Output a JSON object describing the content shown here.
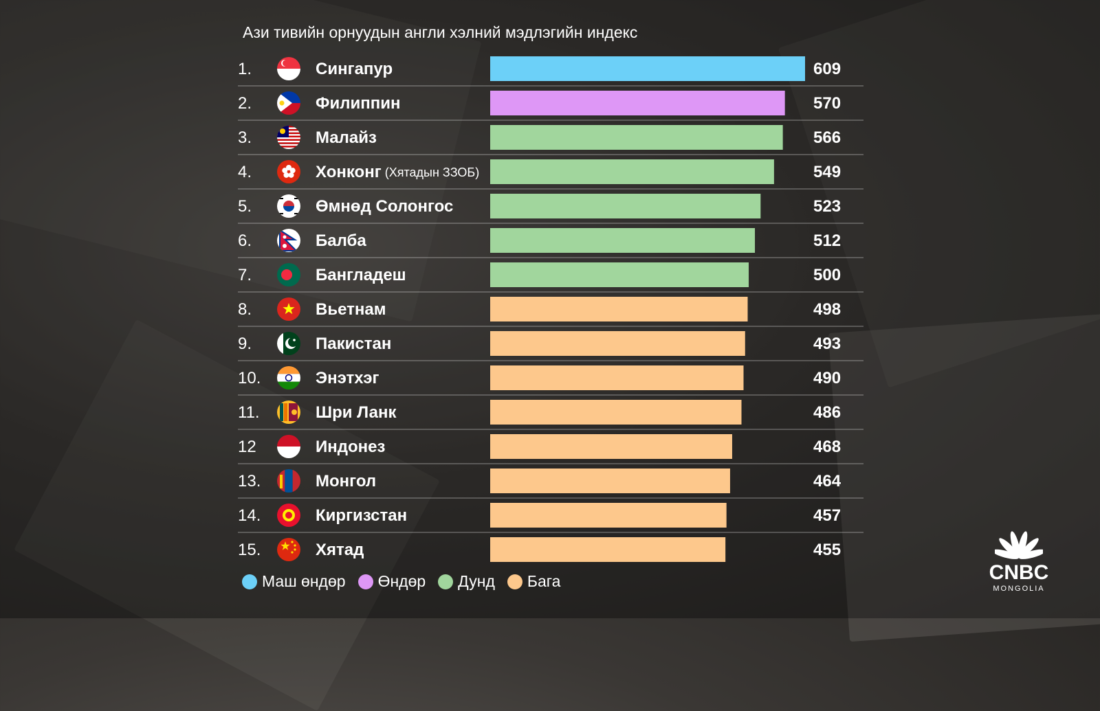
{
  "chart_data": {
    "type": "bar",
    "orientation": "horizontal",
    "title": "Ази тивийн орнуудын англи хэлний мэдлэгийн индекс",
    "value_range": [
      0,
      609
    ],
    "rows": [
      {
        "rank": "1.",
        "name": "Сингапур",
        "note": "",
        "value": 609,
        "level": "very_high",
        "flag": "singapore-flag-icon"
      },
      {
        "rank": "2.",
        "name": "Филиппин",
        "note": "",
        "value": 570,
        "level": "high",
        "flag": "philippines-flag-icon"
      },
      {
        "rank": "3.",
        "name": "Малайз",
        "note": "",
        "value": 566,
        "level": "moderate",
        "flag": "malaysia-flag-icon"
      },
      {
        "rank": "4.",
        "name": "Хонконг",
        "note": "(Хятадын ЗЗОБ)",
        "value": 549,
        "level": "moderate",
        "flag": "hong-kong-flag-icon"
      },
      {
        "rank": "5.",
        "name": "Өмнөд Солонгос",
        "note": "",
        "value": 523,
        "level": "moderate",
        "flag": "south-korea-flag-icon"
      },
      {
        "rank": "6.",
        "name": "Балба",
        "note": "",
        "value": 512,
        "level": "moderate",
        "flag": "nepal-flag-icon"
      },
      {
        "rank": "7.",
        "name": "Бангладеш",
        "note": "",
        "value": 500,
        "level": "moderate",
        "flag": "bangladesh-flag-icon"
      },
      {
        "rank": "8.",
        "name": "Вьетнам",
        "note": "",
        "value": 498,
        "level": "low",
        "flag": "vietnam-flag-icon"
      },
      {
        "rank": "9.",
        "name": "Пакистан",
        "note": "",
        "value": 493,
        "level": "low",
        "flag": "pakistan-flag-icon"
      },
      {
        "rank": "10.",
        "name": "Энэтхэг",
        "note": "",
        "value": 490,
        "level": "low",
        "flag": "india-flag-icon"
      },
      {
        "rank": "11.",
        "name": "Шри Ланк",
        "note": "",
        "value": 486,
        "level": "low",
        "flag": "sri-lanka-flag-icon"
      },
      {
        "rank": "12",
        "name": "Индонез",
        "note": "",
        "value": 468,
        "level": "low",
        "flag": "indonesia-flag-icon"
      },
      {
        "rank": "13.",
        "name": "Монгол",
        "note": "",
        "value": 464,
        "level": "low",
        "flag": "mongolia-flag-icon"
      },
      {
        "rank": "14.",
        "name": "Киргизстан",
        "note": "",
        "value": 457,
        "level": "low",
        "flag": "kyrgyzstan-flag-icon"
      },
      {
        "rank": "15.",
        "name": "Хятад",
        "note": "",
        "value": 455,
        "level": "low",
        "flag": "china-flag-icon"
      }
    ],
    "legend": [
      {
        "key": "very_high",
        "label": "Маш өндөр",
        "color": "#6CD0F8"
      },
      {
        "key": "high",
        "label": "Өндөр",
        "color": "#DE97F6"
      },
      {
        "key": "moderate",
        "label": "Дунд",
        "color": "#A1D69D"
      },
      {
        "key": "low",
        "label": "Бага",
        "color": "#FDC88C"
      }
    ],
    "legend_placement": "bottom-left"
  },
  "logo": {
    "name": "CNBC",
    "sub": "MONGOLIA",
    "icon": "peacock-logo-icon"
  }
}
